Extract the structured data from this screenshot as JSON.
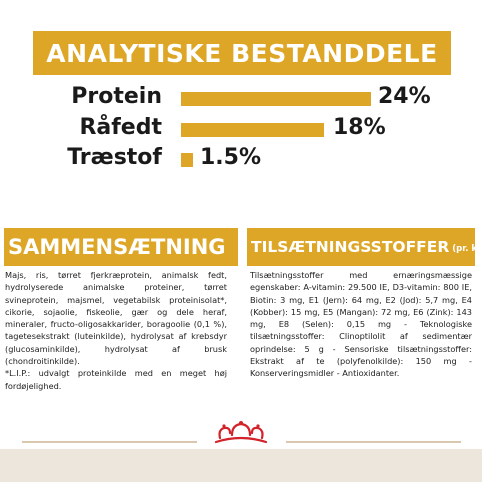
{
  "analysis": {
    "title": "ANALYTISKE BESTANDDELE",
    "rows": [
      {
        "label": "Protein",
        "value_text": "24%",
        "value": 24
      },
      {
        "label": "Råfedt",
        "value_text": "18%",
        "value": 18
      },
      {
        "label": "Træstof",
        "value_text": "1.5%",
        "value": 1.5
      }
    ]
  },
  "composition": {
    "title": "SAMMENSÆTNING",
    "text": "Majs, ris, tørret fjerkræprotein, animalsk fedt, hydrolyserede animalske proteiner, tørret svineprotein, majsmel, vegetabilsk proteinisolat*, cikorie, sojaolie, fiskeolie, gær og dele heraf, mineraler, fructo-oligosakkarider, boragoolie (0,1 %), tagetesekstrakt (luteinkilde), hydrolysat af krebsdyr (glucosaminkilde), hydrolysat af brusk (chondroitinkilde).",
    "note": "*L.I.P.: udvalgt proteinkilde med en meget høj fordøjelighed."
  },
  "additives": {
    "title": "TILSÆTNINGSSTOFFER",
    "title_suffix": "(pr. kg)",
    "text": "Tilsætningsstoffer med ernæringsmæssige egenskaber: A-vitamin: 29.500 IE, D3-vitamin: 800 IE, Biotin: 3 mg, E1 (Jern): 64 mg, E2 (Jod): 5,7 mg, E4 (Kobber): 15 mg, E5 (Mangan): 72 mg, E6 (Zink): 143 mg, E8 (Selen): 0,15 mg - Teknologiske tilsætningsstoffer: Clinoptilolit af sedimentær oprindelse: 5 g - Sensoriske tilsætningsstoffer: Ekstrakt af te (polyfenolkilde): 150 mg - Konserveringsmidler - Antioxidanter."
  },
  "colors": {
    "accent": "#dda626",
    "logo_red": "#d2232a",
    "bottom_band": "#ece6dd"
  }
}
